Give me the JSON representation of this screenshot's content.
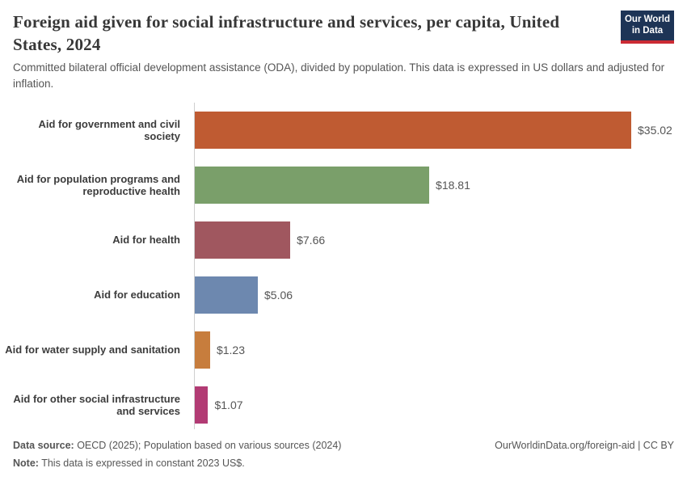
{
  "header": {
    "title": "Foreign aid given for social infrastructure and services, per capita, United States, 2024",
    "subtitle": "Committed bilateral official development assistance (ODA), divided by population. This data is expressed in US dollars and adjusted for inflation.",
    "logo": {
      "line1": "Our World",
      "line2": "in Data",
      "bg_color": "#1d3456",
      "accent_color": "#cb2b34"
    }
  },
  "chart_data": {
    "type": "bar",
    "orientation": "horizontal",
    "title": "Foreign aid given for social infrastructure and services, per capita, United States, 2024",
    "categories": [
      "Aid for government and civil society",
      "Aid for population programs and reproductive health",
      "Aid for health",
      "Aid for education",
      "Aid for water supply and sanitation",
      "Aid for other social infrastructure and services"
    ],
    "values": [
      35.02,
      18.81,
      7.66,
      5.06,
      1.23,
      1.07
    ],
    "value_labels": [
      "$35.02",
      "$18.81",
      "$7.66",
      "$5.06",
      "$1.23",
      "$1.07"
    ],
    "bar_colors": [
      "#bf5b32",
      "#7a9f6a",
      "#a0575f",
      "#6d88af",
      "#c77d3d",
      "#b23b74"
    ],
    "xlim": [
      0,
      35.02
    ],
    "grid": false,
    "legend": "none"
  },
  "footer": {
    "source_label": "Data source:",
    "source_text": " OECD (2025); Population based on various sources (2024)",
    "note_label": "Note:",
    "note_text": " This data is expressed in constant 2023 US$.",
    "link_text": "OurWorldinData.org/foreign-aid | CC BY"
  }
}
